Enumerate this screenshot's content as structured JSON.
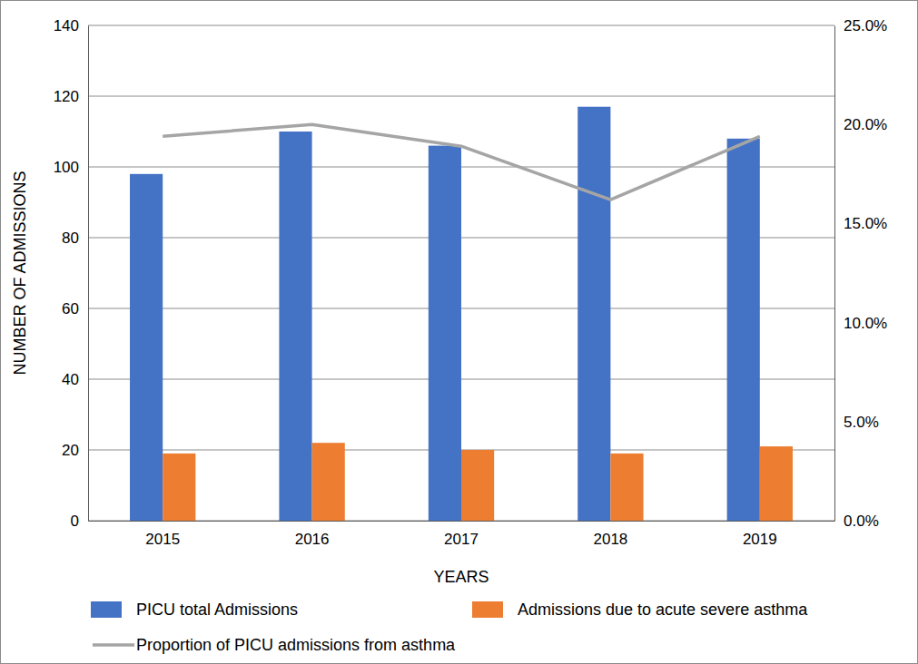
{
  "chart_data": {
    "type": "bar",
    "x_label": "YEARS",
    "y_label": "NUMBER OF ADMISSIONS",
    "categories": [
      "2015",
      "2016",
      "2017",
      "2018",
      "2019"
    ],
    "series": [
      {
        "name": "PICU total Admissions",
        "type": "bar",
        "color": "#4472c4",
        "values": [
          98,
          110,
          106,
          117,
          108
        ]
      },
      {
        "name": "Admissions due to acute severe asthma",
        "type": "bar",
        "color": "#ed7d31",
        "values": [
          19,
          22,
          20,
          19,
          21
        ]
      },
      {
        "name": "Proportion of PICU admissions from asthma",
        "type": "line",
        "axis": "y2",
        "color": "#a5a5a5",
        "values": [
          19.4,
          20.0,
          18.9,
          16.2,
          19.4
        ]
      }
    ],
    "ylim": [
      0,
      140
    ],
    "yticks": [
      0,
      20,
      40,
      60,
      80,
      100,
      120,
      140
    ],
    "y2lim": [
      0,
      25
    ],
    "y2ticks": [
      {
        "value": 0,
        "label": "0.0%"
      },
      {
        "value": 5,
        "label": "5.0%"
      },
      {
        "value": 10,
        "label": "10.0%"
      },
      {
        "value": 15,
        "label": "15.0%"
      },
      {
        "value": 20,
        "label": "20.0%"
      },
      {
        "value": 25,
        "label": "25.0%"
      }
    ],
    "grid": true,
    "legend": "bottom"
  }
}
